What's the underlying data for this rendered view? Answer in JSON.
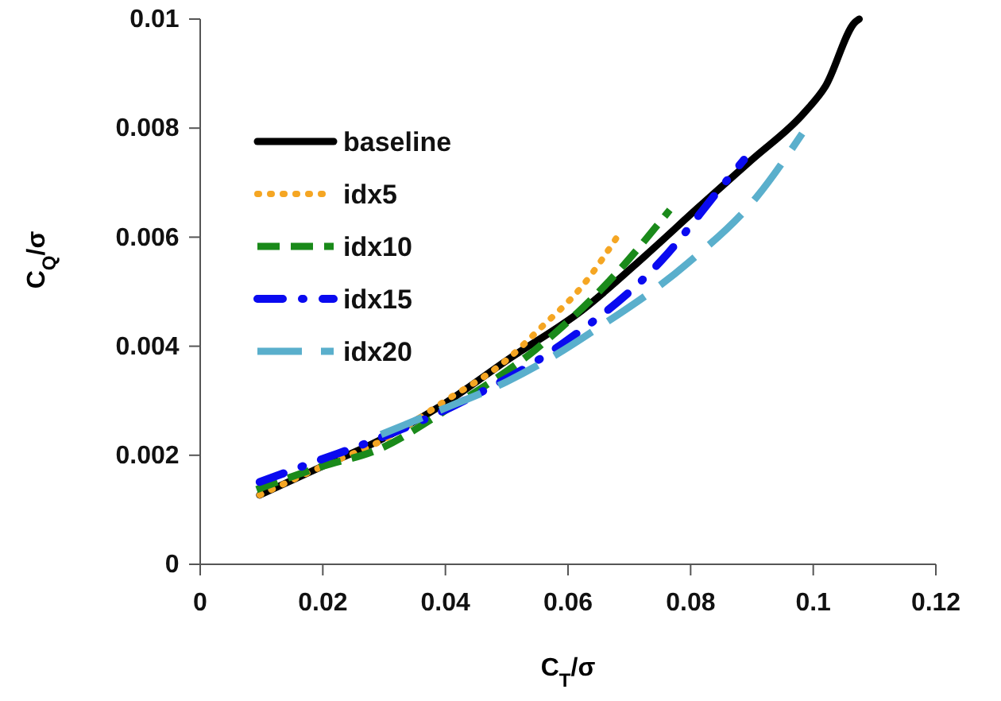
{
  "chart_data": {
    "type": "line",
    "xlabel": "C$_{T}$/σ",
    "ylabel": "C$_{Q}$/σ",
    "xlim": [
      0,
      0.12
    ],
    "xticks": [
      0,
      0.02,
      0.04,
      0.06,
      0.08,
      0.1,
      0.12
    ],
    "ylim": [
      0,
      0.01
    ],
    "yticks": [
      0,
      0.002,
      0.004,
      0.006,
      0.008,
      0.01
    ],
    "grid": false,
    "legend": "top left",
    "marker": "none",
    "series": [
      {
        "name": "baseline",
        "color": "#000000",
        "line_style": "solid",
        "x": [
          0.0097,
          0.02,
          0.0295,
          0.04,
          0.05,
          0.0623,
          0.0727,
          0.0813,
          0.09,
          0.0986,
          0.102,
          0.1068,
          0.1075
        ],
        "values": [
          0.00127,
          0.0018,
          0.00229,
          0.00296,
          0.00374,
          0.00466,
          0.00567,
          0.00655,
          0.00742,
          0.00829,
          0.00877,
          0.00994,
          0.01
        ]
      },
      {
        "name": "idx5",
        "color": "#f5a623",
        "line_style": "dotted",
        "x": [
          0.0097,
          0.02,
          0.03,
          0.04,
          0.05,
          0.0554,
          0.0623,
          0.0688
        ],
        "values": [
          0.00127,
          0.0018,
          0.00229,
          0.003,
          0.00375,
          0.00432,
          0.0051,
          0.00614
        ]
      },
      {
        "name": "idx10",
        "color": "#1a8a1a",
        "line_style": "dashed",
        "x": [
          0.0092,
          0.02,
          0.0287,
          0.04,
          0.0546,
          0.0675,
          0.0766
        ],
        "values": [
          0.00137,
          0.0018,
          0.00209,
          0.00282,
          0.00393,
          0.00529,
          0.0065
        ]
      },
      {
        "name": "idx15",
        "color": "#0a0af0",
        "line_style": "dashdot",
        "x": [
          0.0097,
          0.0192,
          0.0287,
          0.0416,
          0.0589,
          0.0753,
          0.0848,
          0.0887
        ],
        "values": [
          0.00151,
          0.0019,
          0.00229,
          0.00292,
          0.00403,
          0.00558,
          0.00689,
          0.00742
        ]
      },
      {
        "name": "idx20",
        "color": "#5aafcc",
        "line_style": "longdash",
        "x": [
          0.0295,
          0.039,
          0.05,
          0.0593,
          0.064,
          0.0796,
          0.0908,
          0.0982
        ],
        "values": [
          0.00238,
          0.00282,
          0.00335,
          0.00393,
          0.00427,
          0.00553,
          0.00674,
          0.0079
        ]
      }
    ]
  }
}
